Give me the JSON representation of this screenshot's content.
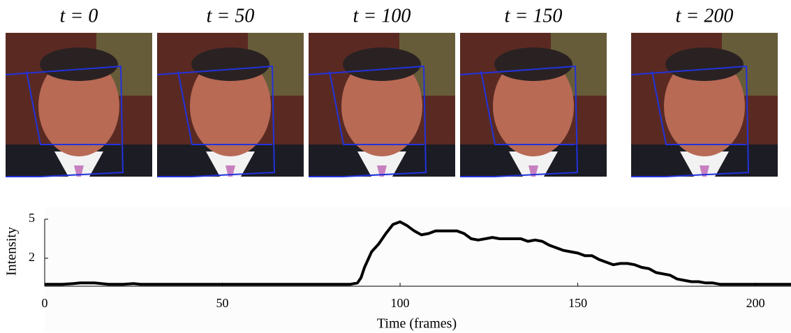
{
  "frames": [
    "t = 0",
    "t = 50",
    "t = 100",
    "t = 150",
    "t = 200"
  ],
  "chart_data": {
    "type": "line",
    "xlabel": "Time (frames)",
    "ylabel": "Intensity",
    "xlim": [
      0,
      210
    ],
    "ylim": [
      -0.15,
      5
    ],
    "xticks": [
      0,
      50,
      100,
      150,
      200
    ],
    "yticks": [
      2,
      5
    ],
    "series": [
      {
        "name": "Intensity",
        "color": "#000000",
        "x": [
          0,
          5,
          8,
          10,
          12,
          14,
          16,
          18,
          22,
          25,
          27,
          30,
          40,
          60,
          80,
          86,
          88,
          89,
          90,
          92,
          94,
          96,
          98,
          100,
          102,
          104,
          106,
          108,
          110,
          112,
          114,
          116,
          118,
          120,
          122,
          124,
          126,
          128,
          130,
          132,
          134,
          136,
          138,
          140,
          142,
          144,
          146,
          148,
          150,
          152,
          154,
          156,
          158,
          160,
          162,
          164,
          166,
          168,
          170,
          172,
          174,
          176,
          178,
          180,
          182,
          184,
          186,
          188,
          190,
          192,
          200,
          210
        ],
        "values": [
          0,
          0,
          0.05,
          0.1,
          0.1,
          0.1,
          0.05,
          0,
          0,
          0.05,
          0,
          0,
          0,
          0,
          0,
          0,
          0.1,
          0.5,
          1.3,
          2.5,
          3.1,
          3.9,
          4.6,
          4.8,
          4.5,
          4.1,
          3.8,
          3.9,
          4.1,
          4.1,
          4.1,
          4.1,
          3.9,
          3.5,
          3.4,
          3.5,
          3.6,
          3.5,
          3.5,
          3.5,
          3.5,
          3.3,
          3.4,
          3.3,
          3.0,
          2.8,
          2.6,
          2.5,
          2.4,
          2.2,
          2.2,
          1.9,
          1.7,
          1.5,
          1.6,
          1.6,
          1.5,
          1.3,
          1.2,
          0.9,
          0.8,
          0.7,
          0.4,
          0.3,
          0.2,
          0.2,
          0.1,
          0.1,
          0,
          0,
          0,
          0
        ]
      }
    ]
  }
}
